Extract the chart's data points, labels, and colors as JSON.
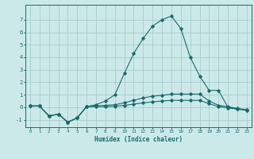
{
  "xlabel": "Humidex (Indice chaleur)",
  "background_color": "#cce9e9",
  "grid_color": "#a8cccc",
  "line_color": "#1a6b6b",
  "xlim": [
    -0.5,
    23.5
  ],
  "ylim": [
    -1.6,
    8.2
  ],
  "yticks": [
    -1,
    0,
    1,
    2,
    3,
    4,
    5,
    6,
    7
  ],
  "xticks": [
    0,
    1,
    2,
    3,
    4,
    5,
    6,
    7,
    8,
    9,
    10,
    11,
    12,
    13,
    14,
    15,
    16,
    17,
    18,
    19,
    20,
    21,
    22,
    23
  ],
  "series2_x": [
    0,
    1,
    2,
    3,
    4,
    5,
    6,
    7,
    8,
    9,
    10,
    11,
    12,
    13,
    14,
    15,
    16,
    17,
    18,
    19,
    20,
    21,
    22,
    23
  ],
  "series2_y": [
    0.1,
    0.1,
    -0.7,
    -0.55,
    -1.2,
    -0.85,
    0.05,
    0.2,
    0.5,
    1.0,
    2.7,
    4.3,
    5.5,
    6.5,
    7.0,
    7.3,
    6.3,
    4.0,
    2.5,
    1.35,
    1.35,
    0.0,
    -0.15,
    -0.25
  ],
  "series1_x": [
    0,
    1,
    2,
    3,
    4,
    5,
    6,
    7,
    8,
    9,
    10,
    11,
    12,
    13,
    14,
    15,
    16,
    17,
    18,
    19,
    20,
    21,
    22,
    23
  ],
  "series1_y": [
    0.1,
    0.1,
    -0.7,
    -0.55,
    -1.2,
    -0.85,
    0.05,
    0.1,
    0.15,
    0.2,
    0.35,
    0.55,
    0.75,
    0.88,
    0.95,
    1.05,
    1.05,
    1.05,
    1.05,
    0.5,
    0.15,
    0.05,
    -0.1,
    -0.2
  ],
  "series3_x": [
    0,
    1,
    2,
    3,
    4,
    5,
    6,
    7,
    8,
    9,
    10,
    11,
    12,
    13,
    14,
    15,
    16,
    17,
    18,
    19,
    20,
    21,
    22,
    23
  ],
  "series3_y": [
    0.1,
    0.1,
    -0.7,
    -0.55,
    -1.2,
    -0.85,
    0.05,
    0.05,
    0.05,
    0.08,
    0.15,
    0.25,
    0.35,
    0.42,
    0.5,
    0.55,
    0.55,
    0.55,
    0.55,
    0.28,
    0.05,
    -0.05,
    -0.15,
    -0.22
  ]
}
